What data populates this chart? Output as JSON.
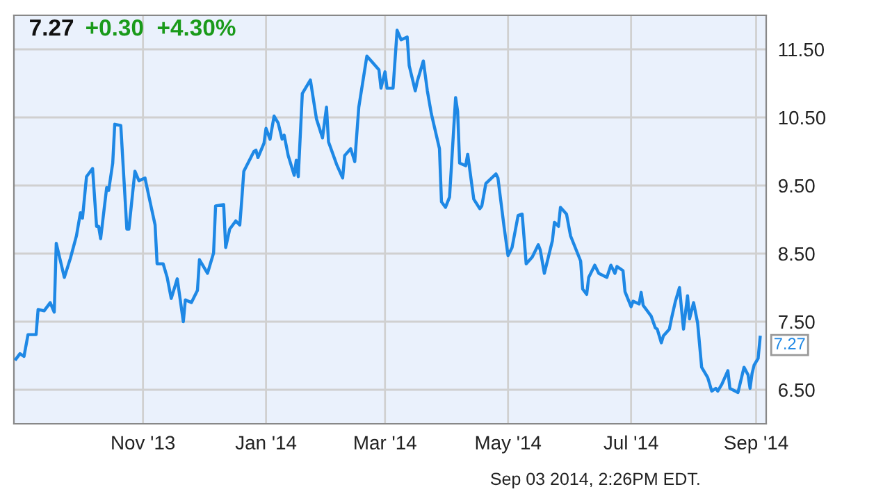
{
  "chart_data": {
    "type": "line",
    "title": "7.27",
    "subtitle": "+0.30  +4.30%",
    "x": [
      "2013-08-30",
      "2013-09-01",
      "2013-09-03",
      "2013-09-05",
      "2013-09-09",
      "2013-09-10",
      "2013-09-13",
      "2013-09-16",
      "2013-09-18",
      "2013-09-19",
      "2013-09-23",
      "2013-09-26",
      "2013-09-29",
      "2013-10-01",
      "2013-10-02",
      "2013-10-04",
      "2013-10-07",
      "2013-10-09",
      "2013-10-10",
      "2013-10-11",
      "2013-10-14",
      "2013-10-15",
      "2013-10-17",
      "2013-10-18",
      "2013-10-21",
      "2013-10-24",
      "2013-10-25",
      "2013-10-28",
      "2013-10-30",
      "2013-11-02",
      "2013-11-04",
      "2013-11-07",
      "2013-11-08",
      "2013-11-11",
      "2013-11-13",
      "2013-11-15",
      "2013-11-18",
      "2013-11-21",
      "2013-11-22",
      "2013-11-25",
      "2013-11-28",
      "2013-11-29",
      "2013-12-03",
      "2013-12-06",
      "2013-12-07",
      "2013-12-11",
      "2013-12-12",
      "2013-12-14",
      "2013-12-17",
      "2013-12-19",
      "2013-12-20",
      "2013-12-21",
      "2013-12-26",
      "2013-12-27",
      "2013-12-28",
      "2013-12-31",
      "2014-01-01",
      "2014-01-03",
      "2014-01-05",
      "2014-01-07",
      "2014-01-09",
      "2014-01-10",
      "2014-01-12",
      "2014-01-15",
      "2014-01-16",
      "2014-01-17",
      "2014-01-19",
      "2014-01-23",
      "2014-01-26",
      "2014-01-29",
      "2014-01-31",
      "2014-02-01",
      "2014-02-05",
      "2014-02-08",
      "2014-02-09",
      "2014-02-12",
      "2014-02-14",
      "2014-02-16",
      "2014-02-20",
      "2014-02-23",
      "2014-02-26",
      "2014-02-27",
      "2014-03-01",
      "2014-03-02",
      "2014-03-05",
      "2014-03-07",
      "2014-03-09",
      "2014-03-12",
      "2014-03-13",
      "2014-03-16",
      "2014-03-17",
      "2014-03-20",
      "2014-03-22",
      "2014-03-24",
      "2014-03-28",
      "2014-03-29",
      "2014-03-31",
      "2014-04-02",
      "2014-04-05",
      "2014-04-06",
      "2014-04-07",
      "2014-04-10",
      "2014-04-11",
      "2014-04-14",
      "2014-04-17",
      "2014-04-18",
      "2014-04-20",
      "2014-04-25",
      "2014-04-26",
      "2014-04-29",
      "2014-05-01",
      "2014-05-03",
      "2014-05-06",
      "2014-05-08",
      "2014-05-10",
      "2014-05-13",
      "2014-05-16",
      "2014-05-17",
      "2014-05-19",
      "2014-05-23",
      "2014-05-24",
      "2014-05-26",
      "2014-05-27",
      "2014-05-30",
      "2014-06-01",
      "2014-06-06",
      "2014-06-07",
      "2014-06-09",
      "2014-06-10",
      "2014-06-13",
      "2014-06-15",
      "2014-06-19",
      "2014-06-21",
      "2014-06-23",
      "2014-06-24",
      "2014-06-27",
      "2014-06-28",
      "2014-07-01",
      "2014-07-02",
      "2014-07-05",
      "2014-07-06",
      "2014-07-07",
      "2014-07-11",
      "2014-07-13",
      "2014-07-14",
      "2014-07-16",
      "2014-07-17",
      "2014-07-20",
      "2014-07-21",
      "2014-07-23",
      "2014-07-25",
      "2014-07-27",
      "2014-07-29",
      "2014-07-30",
      "2014-08-01",
      "2014-08-03",
      "2014-08-05",
      "2014-08-08",
      "2014-08-10",
      "2014-08-12",
      "2014-08-13",
      "2014-08-15",
      "2014-08-18",
      "2014-08-19",
      "2014-08-23",
      "2014-08-26",
      "2014-08-28",
      "2014-08-29",
      "2014-08-30",
      "2014-08-31",
      "2014-09-02",
      "2014-09-03"
    ],
    "series": [
      {
        "color": "#1e88e5",
        "values": [
          6.95,
          7.03,
          6.99,
          7.31,
          7.31,
          7.68,
          7.66,
          7.78,
          7.64,
          8.65,
          8.15,
          8.43,
          8.76,
          9.1,
          9.02,
          9.63,
          9.75,
          8.9,
          8.9,
          8.72,
          9.47,
          9.43,
          9.83,
          10.4,
          10.38,
          8.86,
          8.86,
          9.71,
          9.57,
          9.61,
          9.33,
          8.92,
          8.35,
          8.35,
          8.15,
          7.84,
          8.13,
          7.5,
          7.82,
          7.78,
          7.96,
          8.41,
          8.21,
          8.51,
          9.2,
          9.22,
          8.59,
          8.86,
          8.98,
          8.92,
          9.3,
          9.71,
          10.0,
          10.02,
          9.91,
          10.12,
          10.34,
          10.18,
          10.52,
          10.42,
          10.18,
          10.24,
          9.94,
          9.65,
          9.87,
          9.63,
          10.85,
          11.05,
          10.48,
          10.2,
          10.65,
          10.14,
          9.81,
          9.61,
          9.94,
          10.04,
          9.85,
          10.65,
          11.4,
          11.3,
          11.2,
          10.93,
          11.17,
          10.93,
          10.93,
          11.78,
          11.64,
          11.68,
          11.26,
          10.89,
          11.03,
          11.33,
          10.89,
          10.55,
          10.04,
          9.26,
          9.18,
          9.33,
          10.79,
          10.59,
          9.83,
          9.79,
          9.96,
          9.3,
          9.16,
          9.2,
          9.53,
          9.67,
          9.61,
          8.9,
          8.47,
          8.59,
          9.06,
          9.08,
          8.35,
          8.45,
          8.63,
          8.55,
          8.21,
          8.69,
          8.96,
          8.9,
          9.18,
          9.08,
          8.76,
          8.39,
          7.98,
          7.9,
          8.15,
          8.33,
          8.21,
          8.15,
          8.33,
          8.21,
          8.31,
          8.25,
          7.94,
          7.72,
          7.8,
          7.76,
          7.93,
          7.74,
          7.58,
          7.41,
          7.39,
          7.19,
          7.29,
          7.39,
          7.54,
          7.8,
          8.0,
          7.39,
          7.88,
          7.54,
          7.78,
          7.48,
          6.83,
          6.68,
          6.48,
          6.52,
          6.48,
          6.58,
          6.78,
          6.52,
          6.46,
          6.83,
          6.72,
          6.52,
          6.74,
          6.86,
          6.96,
          7.27
        ]
      }
    ],
    "xlim": [
      "2013-08-29",
      "2014-09-06"
    ],
    "xticks": [
      {
        "value": "2013-11-01",
        "label": "Nov '13"
      },
      {
        "value": "2014-01-01",
        "label": "Jan '14"
      },
      {
        "value": "2014-03-01",
        "label": "Mar '14"
      },
      {
        "value": "2014-05-01",
        "label": "May '14"
      },
      {
        "value": "2014-07-01",
        "label": "Jul '14"
      },
      {
        "value": "2014-09-01",
        "label": "Sep '14"
      }
    ],
    "ylim": [
      6.0,
      12.0
    ],
    "yticks": [
      {
        "value": 6.5,
        "label": "6.50"
      },
      {
        "value": 7.5,
        "label": "7.50"
      },
      {
        "value": 8.5,
        "label": "8.50"
      },
      {
        "value": 9.5,
        "label": "9.50"
      },
      {
        "value": 10.5,
        "label": "10.50"
      },
      {
        "value": 11.5,
        "label": "11.50"
      }
    ],
    "grid": true,
    "marker": "none",
    "line_style": "solid",
    "annotations": [
      {
        "text": "7.27",
        "x": "2014-09-03",
        "y": 7.27
      },
      "Sep 03 2014, 2:26PM EDT."
    ]
  }
}
